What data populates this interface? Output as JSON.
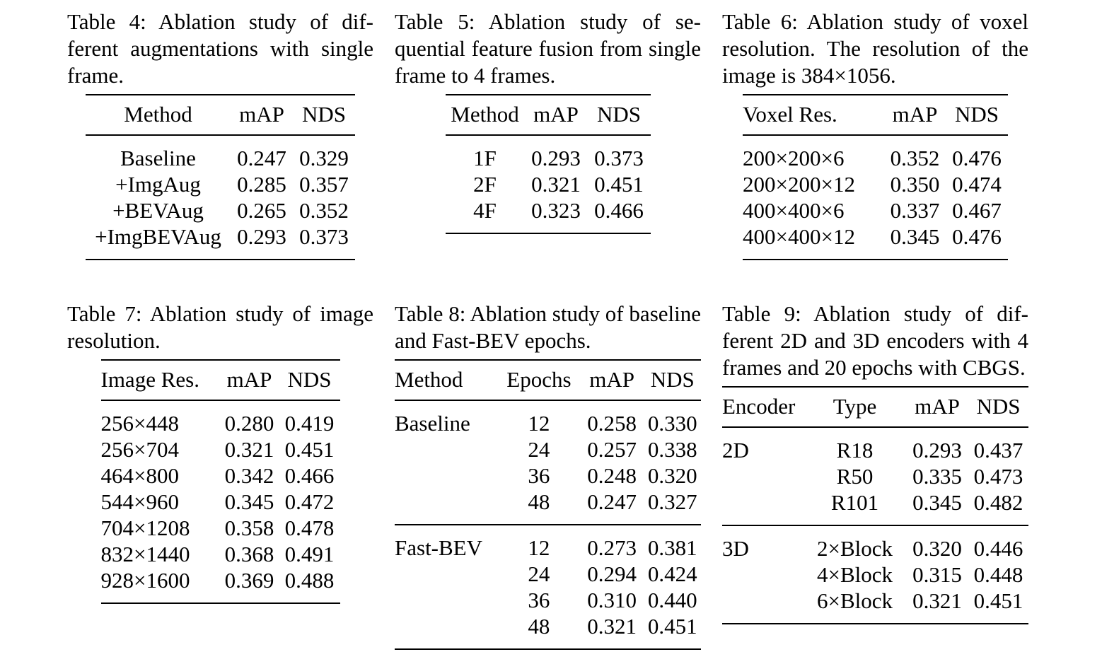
{
  "page": {
    "background": "#ffffff",
    "text_color": "#000000"
  },
  "t4": {
    "caption": "Table 4: Ablation study of dif­ferent augmentations with sin­gle frame.",
    "headers": [
      "Method",
      "mAP",
      "NDS"
    ],
    "rows": [
      [
        "Baseline",
        "0.247",
        "0.329"
      ],
      [
        "+ImgAug",
        "0.285",
        "0.357"
      ],
      [
        "+BEVAug",
        "0.265",
        "0.352"
      ],
      [
        "+ImgBEVAug",
        "0.293",
        "0.373"
      ]
    ]
  },
  "t5": {
    "caption": "Table 5: Ablation study of se­quential feature fusion from sin­gle frame to 4 frames.",
    "headers": [
      "Method",
      "mAP",
      "NDS"
    ],
    "rows": [
      [
        "1F",
        "0.293",
        "0.373"
      ],
      [
        "2F",
        "0.321",
        "0.451"
      ],
      [
        "4F",
        "0.323",
        "0.466"
      ]
    ]
  },
  "t6": {
    "caption": "Table 6: Ablation study of voxel resolution. The resolu­tion of the image is 384×1056.",
    "headers": [
      "Voxel Res.",
      "mAP",
      "NDS"
    ],
    "rows": [
      [
        "200×200×6",
        "0.352",
        "0.476"
      ],
      [
        "200×200×12",
        "0.350",
        "0.474"
      ],
      [
        "400×400×6",
        "0.337",
        "0.467"
      ],
      [
        "400×400×12",
        "0.345",
        "0.476"
      ]
    ]
  },
  "t7": {
    "caption": "Table 7: Ablation study of im­age resolution.",
    "headers": [
      "Image Res.",
      "mAP",
      "NDS"
    ],
    "rows": [
      [
        "256×448",
        "0.280",
        "0.419"
      ],
      [
        "256×704",
        "0.321",
        "0.451"
      ],
      [
        "464×800",
        "0.342",
        "0.466"
      ],
      [
        "544×960",
        "0.345",
        "0.472"
      ],
      [
        "704×1208",
        "0.358",
        "0.478"
      ],
      [
        "832×1440",
        "0.368",
        "0.491"
      ],
      [
        "928×1600",
        "0.369",
        "0.488"
      ]
    ]
  },
  "t8": {
    "caption": "Table 8: Ablation study of base­line and Fast-BEV epochs.",
    "headers": [
      "Method",
      "Epochs",
      "mAP",
      "NDS"
    ],
    "groups": [
      {
        "method": "Baseline",
        "rows": [
          [
            "12",
            "0.258",
            "0.330"
          ],
          [
            "24",
            "0.257",
            "0.338"
          ],
          [
            "36",
            "0.248",
            "0.320"
          ],
          [
            "48",
            "0.247",
            "0.327"
          ]
        ]
      },
      {
        "method": "Fast-BEV",
        "rows": [
          [
            "12",
            "0.273",
            "0.381"
          ],
          [
            "24",
            "0.294",
            "0.424"
          ],
          [
            "36",
            "0.310",
            "0.440"
          ],
          [
            "48",
            "0.321",
            "0.451"
          ]
        ]
      }
    ]
  },
  "t9": {
    "caption": "Table 9: Ablation study of dif­ferent 2D and 3D encoders with 4 frames and 20 epochs with CBGS.",
    "headers": [
      "Encoder",
      "Type",
      "mAP",
      "NDS"
    ],
    "groups": [
      {
        "encoder": "2D",
        "rows": [
          [
            "R18",
            "0.293",
            "0.437"
          ],
          [
            "R50",
            "0.335",
            "0.473"
          ],
          [
            "R101",
            "0.345",
            "0.482"
          ]
        ]
      },
      {
        "encoder": "3D",
        "rows": [
          [
            "2×Block",
            "0.320",
            "0.446"
          ],
          [
            "4×Block",
            "0.315",
            "0.448"
          ],
          [
            "6×Block",
            "0.321",
            "0.451"
          ]
        ]
      }
    ]
  }
}
